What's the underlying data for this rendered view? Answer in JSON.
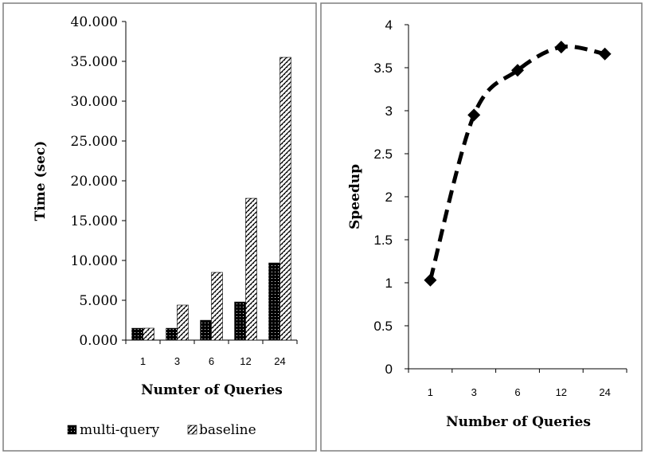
{
  "chart_data": [
    {
      "type": "bar",
      "categories": [
        "1",
        "3",
        "6",
        "12",
        "24"
      ],
      "series": [
        {
          "name": "multi-query",
          "values": [
            1.5,
            1.5,
            2.5,
            4.8,
            9.7
          ],
          "pattern": "solid-dotted"
        },
        {
          "name": "baseline",
          "values": [
            1.5,
            4.4,
            8.5,
            17.8,
            35.5
          ],
          "pattern": "hatched"
        }
      ],
      "xlabel": "Numter of Queries",
      "ylabel": "Time (sec)",
      "ylim": [
        0,
        40
      ],
      "yticks": [
        "0.000",
        "5.000",
        "10.000",
        "15.000",
        "20.000",
        "25.000",
        "30.000",
        "35.000",
        "40.000"
      ],
      "legend": "bottom",
      "grid": false
    },
    {
      "type": "line",
      "categories": [
        "1",
        "3",
        "6",
        "12",
        "24"
      ],
      "series": [
        {
          "values": [
            1.03,
            2.95,
            3.47,
            3.74,
            3.66
          ],
          "style": "dashed",
          "marker": "diamond"
        }
      ],
      "xlabel": "Number of Queries",
      "ylabel": "Speedup",
      "ylim": [
        0,
        4
      ],
      "yticks": [
        "0",
        "0.5",
        "1",
        "1.5",
        "2",
        "2.5",
        "3",
        "3.5",
        "4"
      ],
      "grid": false
    }
  ],
  "colors": {
    "bar_fill": "#000000",
    "line": "#000000",
    "frame": "#7f7f7f"
  }
}
